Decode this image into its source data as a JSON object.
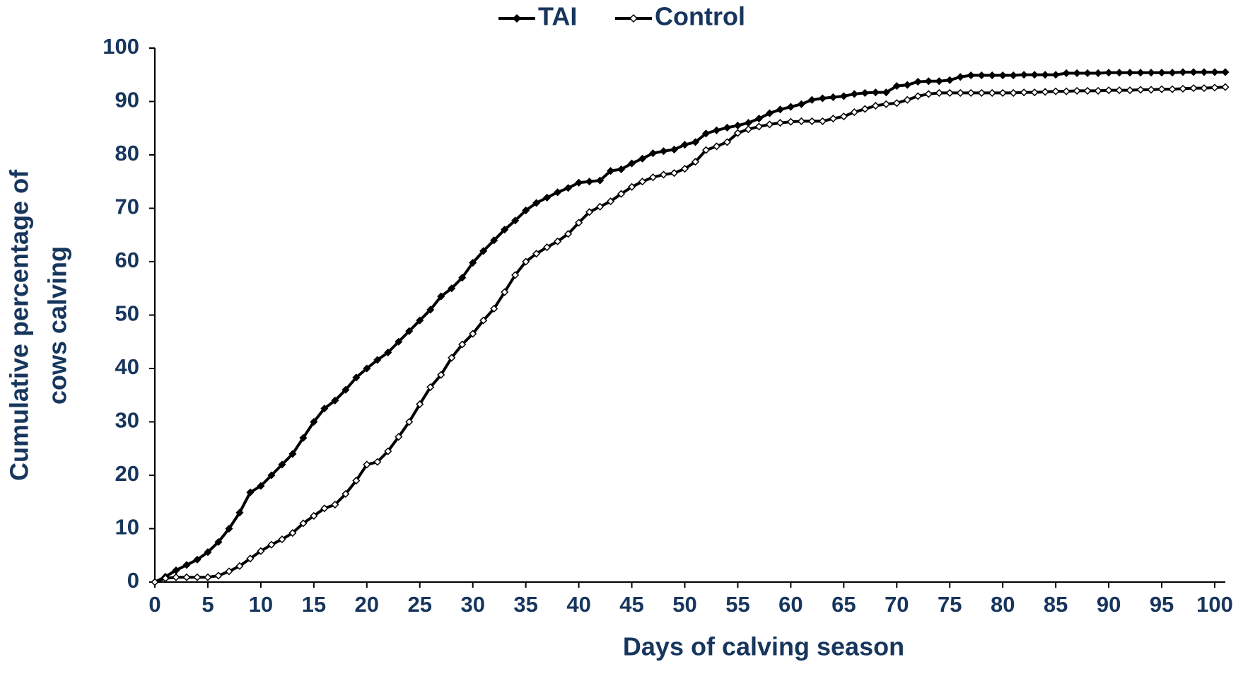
{
  "chart_data": {
    "type": "line",
    "xlabel": "Days of calving season",
    "ylabel": [
      "Cumulative percentage of",
      "cows calving"
    ],
    "x": [
      0,
      1,
      2,
      3,
      4,
      5,
      6,
      7,
      8,
      9,
      10,
      11,
      12,
      13,
      14,
      15,
      16,
      17,
      18,
      19,
      20,
      21,
      22,
      23,
      24,
      25,
      26,
      27,
      28,
      29,
      30,
      31,
      32,
      33,
      34,
      35,
      36,
      37,
      38,
      39,
      40,
      41,
      42,
      43,
      44,
      45,
      46,
      47,
      48,
      49,
      50,
      51,
      52,
      53,
      54,
      55,
      56,
      57,
      58,
      59,
      60,
      61,
      62,
      63,
      64,
      65,
      66,
      67,
      68,
      69,
      70,
      71,
      72,
      73,
      74,
      75,
      76,
      77,
      78,
      79,
      80,
      81,
      82,
      83,
      84,
      85,
      86,
      87,
      88,
      89,
      90,
      91,
      92,
      93,
      94,
      95,
      96,
      97,
      98,
      99,
      100,
      101
    ],
    "series": [
      {
        "name": "TAI",
        "color": "#000000",
        "marker": "filled",
        "values": [
          0,
          1,
          2.2,
          3.2,
          4.2,
          5.6,
          7.5,
          10,
          13,
          16.8,
          18,
          20,
          22,
          24,
          27,
          30,
          32.5,
          34,
          36,
          38.3,
          40,
          41.6,
          43,
          45,
          47,
          49,
          51,
          53.5,
          55,
          57,
          59.8,
          62,
          64,
          66,
          67.7,
          69.6,
          71,
          72,
          73,
          73.8,
          74.8,
          75,
          75.2,
          77,
          77.3,
          78.4,
          79.3,
          80.3,
          80.7,
          81,
          81.9,
          82.4,
          84,
          84.6,
          85.1,
          85.5,
          86,
          86.8,
          87.8,
          88.5,
          89,
          89.5,
          90.3,
          90.6,
          90.8,
          91,
          91.4,
          91.6,
          91.7,
          91.7,
          92.9,
          93.1,
          93.7,
          93.8,
          93.8,
          94,
          94.6,
          94.9,
          94.9,
          94.9,
          94.9,
          94.9,
          95,
          95,
          95,
          95,
          95.3,
          95.3,
          95.3,
          95.3,
          95.4,
          95.4,
          95.4,
          95.4,
          95.4,
          95.4,
          95.4,
          95.5,
          95.5,
          95.5,
          95.5,
          95.5
        ]
      },
      {
        "name": "Control",
        "color": "#000000",
        "marker": "open",
        "values": [
          0,
          0.7,
          0.9,
          0.9,
          0.9,
          0.9,
          1.2,
          2,
          3,
          4.4,
          5.8,
          7,
          8,
          9.2,
          11,
          12.4,
          13.8,
          14.5,
          16.5,
          19,
          22,
          22.5,
          24.5,
          27.2,
          30,
          33.3,
          36.5,
          38.8,
          42,
          44.5,
          46.5,
          49,
          51.2,
          54.3,
          57.5,
          60,
          61.5,
          62.7,
          63.8,
          65.2,
          67.3,
          69.3,
          70.3,
          71.3,
          72.7,
          74,
          75,
          75.8,
          76.3,
          76.6,
          77.4,
          78.7,
          80.9,
          81.6,
          82.4,
          84.1,
          84.8,
          85.3,
          85.7,
          86,
          86.2,
          86.3,
          86.3,
          86.3,
          86.8,
          87.2,
          88,
          88.6,
          89.2,
          89.5,
          89.7,
          90.3,
          91,
          91.4,
          91.6,
          91.6,
          91.6,
          91.6,
          91.6,
          91.6,
          91.6,
          91.6,
          91.7,
          91.7,
          91.8,
          91.9,
          91.9,
          92,
          92,
          92,
          92.1,
          92.1,
          92.1,
          92.2,
          92.2,
          92.3,
          92.3,
          92.4,
          92.5,
          92.5,
          92.6,
          92.7
        ]
      }
    ],
    "xlim": [
      0,
      101
    ],
    "xticks": [
      0,
      5,
      10,
      15,
      20,
      25,
      30,
      35,
      40,
      45,
      50,
      55,
      60,
      65,
      70,
      75,
      80,
      85,
      90,
      95,
      100
    ],
    "ylim": [
      0,
      100
    ],
    "yticks": [
      0,
      10,
      20,
      30,
      40,
      50,
      60,
      70,
      80,
      90,
      100
    ],
    "grid": false,
    "legend": "top",
    "label_color": "#17365d"
  }
}
